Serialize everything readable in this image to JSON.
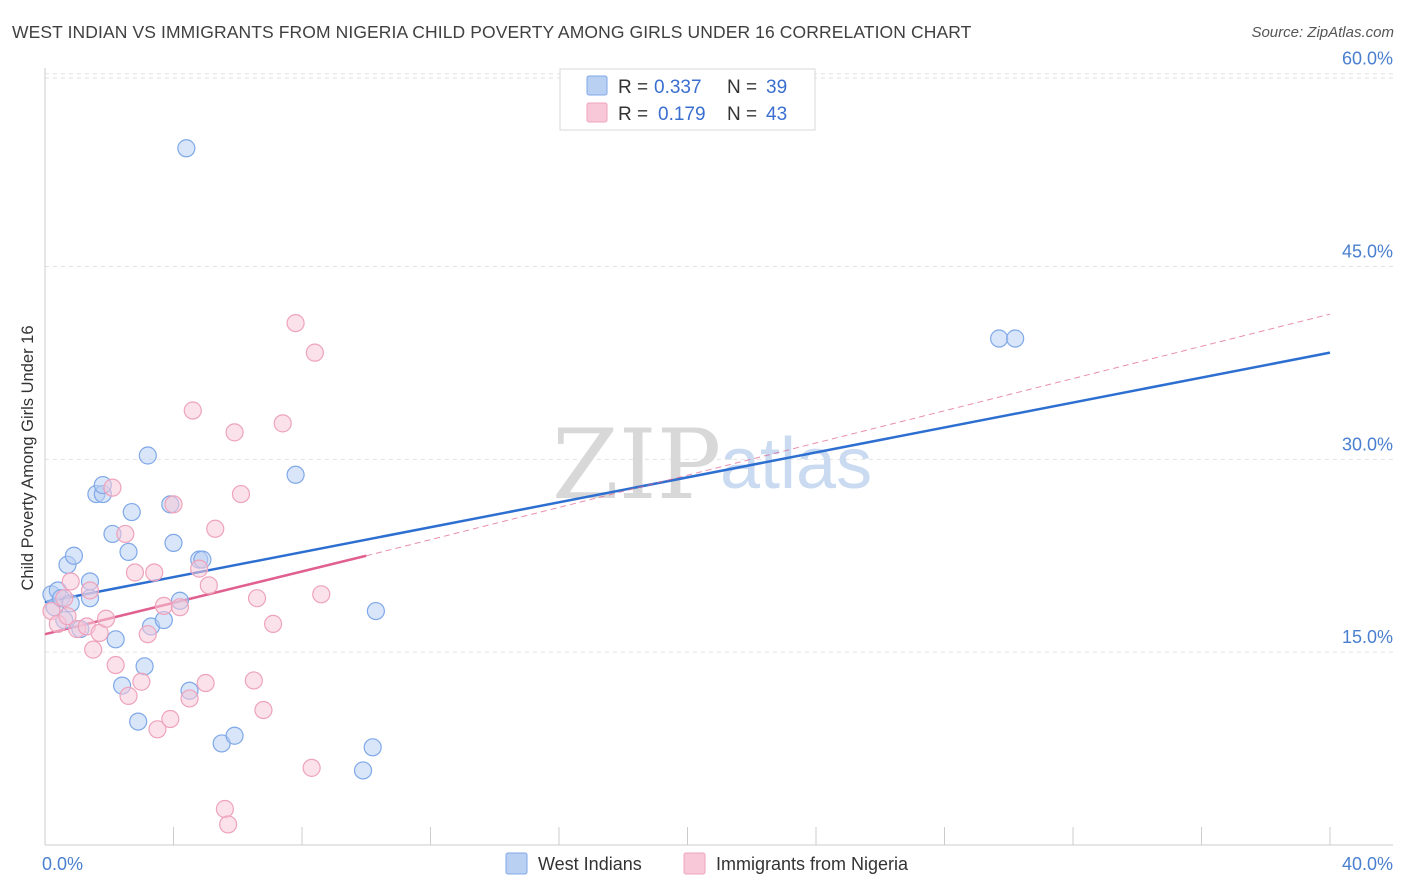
{
  "chart_data": {
    "type": "scatter",
    "title": "WEST INDIAN VS IMMIGRANTS FROM NIGERIA CHILD POVERTY AMONG GIRLS UNDER 16 CORRELATION CHART",
    "source": "Source: ZipAtlas.com",
    "ylabel": "Child Poverty Among Girls Under 16",
    "xlabel": "",
    "xlim": [
      0,
      40
    ],
    "ylim": [
      0,
      62
    ],
    "x_tick_labels": {
      "min": "0.0%",
      "max": "40.0%"
    },
    "y_ticks": [
      {
        "value": 15,
        "label": "15.0%"
      },
      {
        "value": 30,
        "label": "30.0%"
      },
      {
        "value": 45,
        "label": "45.0%"
      },
      {
        "value": 60,
        "label": "60.0%"
      }
    ],
    "legend": {
      "r_label": "R =",
      "n_label": "N =",
      "series": [
        {
          "r": "0.337",
          "n": "39"
        },
        {
          "r": "0.179",
          "n": "43"
        }
      ]
    },
    "watermark": {
      "zip": "ZIP",
      "atlas": "atlas"
    },
    "series": [
      {
        "name": "West Indians",
        "color": "#7fa8e8",
        "fill": "#b9d0f3",
        "line_color": "#2d6fd0",
        "trend": {
          "x0": 0,
          "y0": 18.9,
          "x1": 40,
          "y1": 38.3
        },
        "points": [
          [
            0.2,
            19.5
          ],
          [
            0.3,
            18.5
          ],
          [
            0.4,
            19.8
          ],
          [
            0.5,
            19.2
          ],
          [
            0.6,
            17.5
          ],
          [
            0.7,
            21.8
          ],
          [
            0.8,
            18.8
          ],
          [
            0.9,
            22.5
          ],
          [
            1.1,
            16.8
          ],
          [
            1.4,
            20.5
          ],
          [
            1.4,
            19.2
          ],
          [
            1.6,
            27.3
          ],
          [
            1.8,
            27.3
          ],
          [
            1.8,
            28.0
          ],
          [
            2.1,
            24.2
          ],
          [
            2.2,
            16.0
          ],
          [
            2.4,
            12.4
          ],
          [
            2.6,
            22.8
          ],
          [
            2.7,
            25.9
          ],
          [
            2.9,
            9.6
          ],
          [
            3.1,
            13.9
          ],
          [
            3.2,
            30.3
          ],
          [
            3.3,
            17.0
          ],
          [
            3.7,
            17.5
          ],
          [
            3.9,
            26.5
          ],
          [
            4.0,
            23.5
          ],
          [
            4.2,
            19.0
          ],
          [
            4.4,
            54.2
          ],
          [
            4.5,
            12.0
          ],
          [
            4.8,
            22.2
          ],
          [
            4.9,
            22.2
          ],
          [
            5.5,
            7.9
          ],
          [
            5.9,
            8.5
          ],
          [
            7.8,
            28.8
          ],
          [
            9.9,
            5.8
          ],
          [
            10.2,
            7.6
          ],
          [
            10.3,
            18.2
          ],
          [
            29.7,
            39.4
          ],
          [
            30.2,
            39.4
          ]
        ]
      },
      {
        "name": "Immigrants from Nigeria",
        "color": "#eea3bc",
        "fill": "#f8c8d8",
        "line_color": "#e0608f",
        "trend": {
          "x0": 0,
          "y0": 16.4,
          "x1": 10.0,
          "y1": 22.5
        },
        "trend_ext": {
          "x0": 10.0,
          "y0": 22.5,
          "x1": 40,
          "y1": 41.3
        },
        "points": [
          [
            0.2,
            18.2
          ],
          [
            0.4,
            17.2
          ],
          [
            0.6,
            19.2
          ],
          [
            0.7,
            17.8
          ],
          [
            0.8,
            20.5
          ],
          [
            1.0,
            16.8
          ],
          [
            1.3,
            17.0
          ],
          [
            1.4,
            19.8
          ],
          [
            1.5,
            15.2
          ],
          [
            1.7,
            16.5
          ],
          [
            1.9,
            17.6
          ],
          [
            2.1,
            27.8
          ],
          [
            2.2,
            14.0
          ],
          [
            2.5,
            24.2
          ],
          [
            2.6,
            11.6
          ],
          [
            2.8,
            21.2
          ],
          [
            3.0,
            12.7
          ],
          [
            3.2,
            16.4
          ],
          [
            3.4,
            21.2
          ],
          [
            3.5,
            9.0
          ],
          [
            3.7,
            18.6
          ],
          [
            3.9,
            9.8
          ],
          [
            4.0,
            26.5
          ],
          [
            4.2,
            18.5
          ],
          [
            4.5,
            11.4
          ],
          [
            4.6,
            33.8
          ],
          [
            4.8,
            21.5
          ],
          [
            5.0,
            12.6
          ],
          [
            5.1,
            20.2
          ],
          [
            5.3,
            24.6
          ],
          [
            5.6,
            2.8
          ],
          [
            5.7,
            1.6
          ],
          [
            5.9,
            32.1
          ],
          [
            6.1,
            27.3
          ],
          [
            6.5,
            12.8
          ],
          [
            6.6,
            19.2
          ],
          [
            6.8,
            10.5
          ],
          [
            7.1,
            17.2
          ],
          [
            7.4,
            32.8
          ],
          [
            7.8,
            40.6
          ],
          [
            8.3,
            6.0
          ],
          [
            8.4,
            38.3
          ],
          [
            8.6,
            19.5
          ]
        ]
      }
    ]
  }
}
